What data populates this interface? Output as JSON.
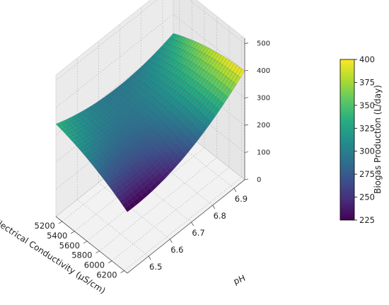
{
  "chart_data": {
    "type": "surface3d",
    "title": "",
    "x_axis": {
      "label": "pH",
      "range": [
        6.4,
        6.95
      ],
      "ticks": [
        6.5,
        6.6,
        6.7,
        6.8,
        6.9
      ],
      "tick_labels": [
        "6.5",
        "6.6",
        "6.7",
        "6.8",
        "6.9"
      ]
    },
    "y_axis": {
      "label": "Electrical Conductivity (μS/cm)",
      "range": [
        5100,
        6250
      ],
      "ticks": [
        5200,
        5400,
        5600,
        5800,
        6000,
        6200
      ],
      "tick_labels": [
        "5200",
        "5400",
        "5600",
        "5800",
        "6000",
        "6200"
      ]
    },
    "z_axis": {
      "label": "",
      "range": [
        0,
        520
      ],
      "ticks": [
        0,
        100,
        200,
        300,
        400,
        500
      ],
      "tick_labels": [
        "0",
        "100",
        "200",
        "300",
        "400",
        "500"
      ]
    },
    "corner_values": [
      {
        "pH": 6.4,
        "ec": 5100,
        "biogas": 340
      },
      {
        "pH": 6.95,
        "ec": 5100,
        "biogas": 330
      },
      {
        "pH": 6.4,
        "ec": 6250,
        "biogas": 225
      },
      {
        "pH": 6.95,
        "ec": 6250,
        "biogas": 400
      }
    ],
    "min_value": 225,
    "max_value": 400,
    "colormap": "viridis",
    "colorbar": {
      "label": "Biogas Production (L/day)",
      "range": [
        225,
        400
      ],
      "ticks": [
        225,
        250,
        275,
        300,
        325,
        350,
        375,
        400
      ],
      "tick_labels": [
        "225",
        "250",
        "275",
        "300",
        "325",
        "350",
        "375",
        "400"
      ]
    },
    "grid": true
  }
}
